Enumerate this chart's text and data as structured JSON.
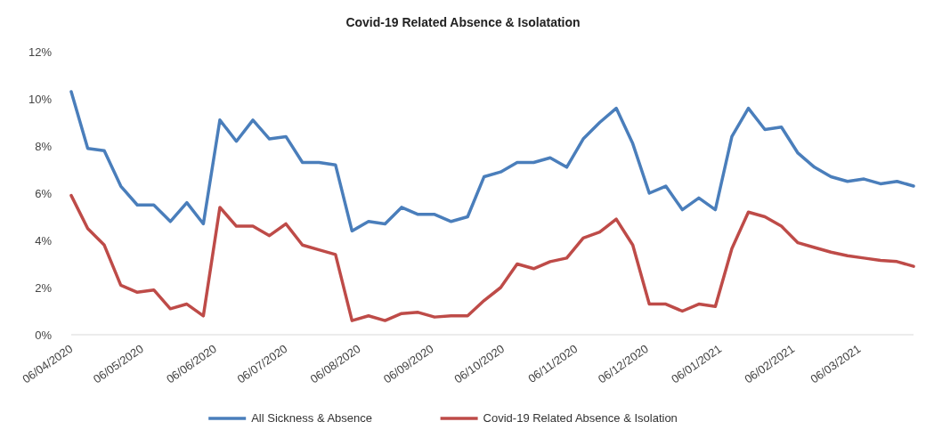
{
  "chart_data": {
    "type": "line",
    "title": "Covid-19 Related Absence & Isolatation",
    "x": [
      "2020-04-06",
      "2020-04-13",
      "2020-04-20",
      "2020-04-27",
      "2020-05-04",
      "2020-05-11",
      "2020-05-18",
      "2020-05-25",
      "2020-06-01",
      "2020-06-08",
      "2020-06-15",
      "2020-06-22",
      "2020-06-29",
      "2020-07-06",
      "2020-07-13",
      "2020-07-20",
      "2020-07-27",
      "2020-08-03",
      "2020-08-10",
      "2020-08-17",
      "2020-08-24",
      "2020-08-31",
      "2020-09-07",
      "2020-09-14",
      "2020-09-21",
      "2020-09-28",
      "2020-10-05",
      "2020-10-12",
      "2020-10-19",
      "2020-10-26",
      "2020-11-02",
      "2020-11-09",
      "2020-11-16",
      "2020-11-23",
      "2020-11-30",
      "2020-12-07",
      "2020-12-14",
      "2020-12-21",
      "2020-12-28",
      "2021-01-04",
      "2021-01-11",
      "2021-01-18",
      "2021-01-25",
      "2021-02-01",
      "2021-02-08",
      "2021-02-15",
      "2021-02-22",
      "2021-03-01",
      "2021-03-08",
      "2021-03-15",
      "2021-03-22",
      "2021-03-29"
    ],
    "series": [
      {
        "name": "All Sickness & Absence",
        "color": "#4a7ebb",
        "values": [
          10.3,
          7.9,
          7.8,
          6.3,
          5.5,
          5.5,
          4.8,
          5.6,
          4.7,
          9.1,
          8.2,
          9.1,
          8.3,
          8.4,
          7.3,
          7.3,
          7.2,
          4.4,
          4.8,
          4.7,
          5.4,
          5.1,
          5.1,
          4.8,
          5.0,
          6.7,
          6.9,
          7.3,
          7.3,
          7.5,
          7.1,
          8.3,
          9.0,
          9.6,
          8.1,
          6.0,
          6.3,
          5.3,
          5.8,
          5.3,
          8.4,
          9.6,
          8.7,
          8.8,
          7.7,
          7.1,
          6.7,
          6.5,
          6.6,
          6.4,
          6.5,
          6.3
        ]
      },
      {
        "name": "Covid-19 Related Absence & Isolation",
        "color": "#be4b48",
        "values": [
          5.9,
          4.5,
          3.8,
          2.1,
          1.8,
          1.9,
          1.1,
          1.3,
          0.8,
          5.4,
          4.6,
          4.6,
          4.2,
          4.7,
          3.8,
          3.6,
          3.4,
          0.6,
          0.8,
          0.6,
          0.9,
          0.95,
          0.75,
          0.8,
          0.8,
          1.45,
          2.0,
          3.0,
          2.8,
          3.1,
          3.25,
          4.1,
          4.35,
          4.9,
          3.8,
          1.3,
          1.3,
          1.0,
          1.3,
          1.2,
          3.65,
          5.2,
          5.0,
          4.6,
          3.9,
          3.7,
          3.5,
          3.35,
          3.25,
          3.15,
          3.1,
          2.9
        ]
      }
    ],
    "xlim": [
      "2020-04-06",
      "2021-03-29"
    ],
    "xticks": [
      {
        "value": "2020-04-06",
        "label": "06/04/2020"
      },
      {
        "value": "2020-05-06",
        "label": "06/05/2020"
      },
      {
        "value": "2020-06-06",
        "label": "06/06/2020"
      },
      {
        "value": "2020-07-06",
        "label": "06/07/2020"
      },
      {
        "value": "2020-08-06",
        "label": "06/08/2020"
      },
      {
        "value": "2020-09-06",
        "label": "06/09/2020"
      },
      {
        "value": "2020-10-06",
        "label": "06/10/2020"
      },
      {
        "value": "2020-11-06",
        "label": "06/11/2020"
      },
      {
        "value": "2020-12-06",
        "label": "06/12/2020"
      },
      {
        "value": "2021-01-06",
        "label": "06/01/2021"
      },
      {
        "value": "2021-02-06",
        "label": "06/02/2021"
      },
      {
        "value": "2021-03-06",
        "label": "06/03/2021"
      }
    ],
    "ylim": [
      0,
      12
    ],
    "yticks": [
      {
        "value": 0,
        "label": "0%"
      },
      {
        "value": 2,
        "label": "2%"
      },
      {
        "value": 4,
        "label": "4%"
      },
      {
        "value": 6,
        "label": "6%"
      },
      {
        "value": 8,
        "label": "8%"
      },
      {
        "value": 10,
        "label": "10%"
      },
      {
        "value": 12,
        "label": "12%"
      }
    ],
    "legend": "bottom"
  }
}
